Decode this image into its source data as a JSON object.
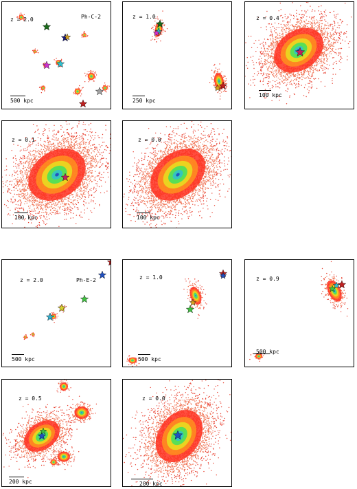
{
  "panels": [
    {
      "id": "c2-z20",
      "redshift": "z = 2.0",
      "run": "Ph-C-2",
      "scale": "500 kpc",
      "stars": [
        "#1a6b1a",
        "#1a1a80",
        "#d4a020",
        "#d030d0",
        "#30c0d0",
        "#a0a0a0",
        "#c02020"
      ]
    },
    {
      "id": "c2-z10",
      "redshift": "z = 1.0",
      "run": "",
      "scale": "250 kpc",
      "stars": [
        "#1a6b1a",
        "#30c0d0",
        "#d030d0",
        "#c02020",
        "#d4a020"
      ]
    },
    {
      "id": "c2-z04",
      "redshift": "z = 0.4",
      "run": "",
      "scale": "100 kpc",
      "stars": [
        "#c02060"
      ]
    },
    {
      "id": "c2-z01",
      "redshift": "z = 0.1",
      "run": "",
      "scale": "100 kpc",
      "stars": [
        "#c02060"
      ]
    },
    {
      "id": "c2-z00",
      "redshift": "z = 0.0",
      "run": "",
      "scale": "100 kpc",
      "stars": []
    },
    {
      "id": "e2-z20",
      "redshift": "z = 2.0",
      "run": "Ph-E-2",
      "scale": "500 kpc",
      "stars": [
        "#c02020",
        "#2050c0",
        "#40c040",
        "#d4d030",
        "#30b0d0"
      ]
    },
    {
      "id": "e2-z10",
      "redshift": "z = 1.0",
      "run": "",
      "scale": "500 kpc",
      "stars": [
        "#c02020",
        "#2050c0",
        "#40c040",
        "#d4a020"
      ]
    },
    {
      "id": "e2-z09",
      "redshift": "z = 0.9",
      "run": "",
      "scale": "500 kpc",
      "stars": [
        "#c02020",
        "#30c0d0",
        "#40c040"
      ]
    },
    {
      "id": "e2-z05",
      "redshift": "z = 0.5",
      "run": "",
      "scale": "200 kpc",
      "stars": [
        "#2050c0",
        "#40c040"
      ]
    },
    {
      "id": "e2-z00",
      "redshift": "z = 0.0",
      "run": "",
      "scale": "200 kpc",
      "stars": [
        "#2050c0"
      ]
    }
  ]
}
